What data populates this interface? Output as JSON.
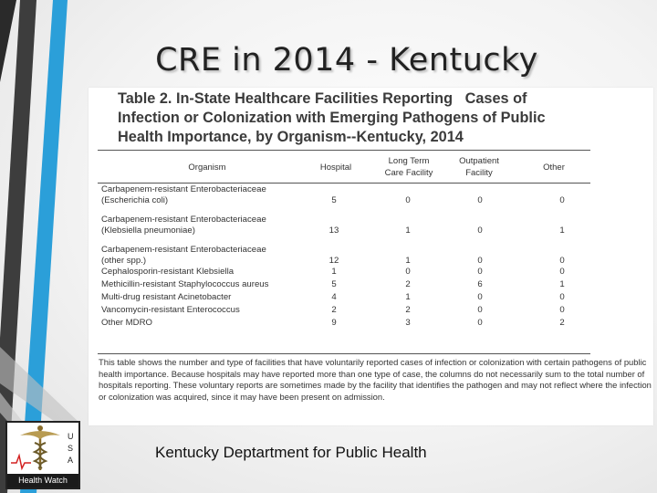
{
  "slide": {
    "title": "CRE in 2014 - Kentucky",
    "source": "Kentucky Deptartment for Public Health"
  },
  "table": {
    "caption_lines": [
      "Table 2. In-State Healthcare Facilities Reporting   Cases of",
      "Infection or Colonization with Emerging Pathogens of Public",
      "Health Importance, by Organism--Kentucky, 2014"
    ],
    "headers": [
      "Organism",
      "Hospital",
      "Long Term\nCare Facility",
      "Outpatient\nFacility",
      "Other"
    ],
    "rows": [
      {
        "name": "Carbapenem-resistant Enterobacteriaceae\n(Escherichia coli)",
        "hospital": "5",
        "ltcf": "0",
        "outpatient": "0",
        "other": "0"
      },
      {
        "name": "Carbapenem-resistant Enterobacteriaceae\n(Klebsiella pneumoniae)",
        "hospital": "13",
        "ltcf": "1",
        "outpatient": "0",
        "other": "1"
      },
      {
        "name": "Carbapenem-resistant Enterobacteriaceae\n(other spp.)",
        "hospital": "12",
        "ltcf": "1",
        "outpatient": "0",
        "other": "0"
      },
      {
        "name": "Cephalosporin-resistant Klebsiella",
        "hospital": "1",
        "ltcf": "0",
        "outpatient": "0",
        "other": "0"
      },
      {
        "name": "Methicillin-resistant Staphylococcus aureus",
        "hospital": "5",
        "ltcf": "2",
        "outpatient": "6",
        "other": "1"
      },
      {
        "name": "Multi-drug resistant Acinetobacter",
        "hospital": "4",
        "ltcf": "1",
        "outpatient": "0",
        "other": "0"
      },
      {
        "name": "Vancomycin-resistant Enterococcus",
        "hospital": "2",
        "ltcf": "2",
        "outpatient": "0",
        "other": "0"
      },
      {
        "name": "Other MDRO",
        "hospital": "9",
        "ltcf": "3",
        "outpatient": "0",
        "other": "2"
      }
    ],
    "footnote": "This table shows the number and type of facilities that have voluntarily reported cases of infection or colonization with certain pathogens of public health importance.  Because hospitals may have reported more than one type of case, the columns do not necessarily sum to the total number of hospitals reporting.  These voluntary reports are sometimes made by the facility that identifies the pathogen and may not reflect where the infection or colonization was acquired, since it may have been present on admission."
  },
  "logo": {
    "letters": [
      "U",
      "S",
      "A"
    ],
    "caption": "Health Watch"
  },
  "colors": {
    "accent_blue": "#2b9fd9",
    "dark_stripe": "#3a3a3a"
  }
}
